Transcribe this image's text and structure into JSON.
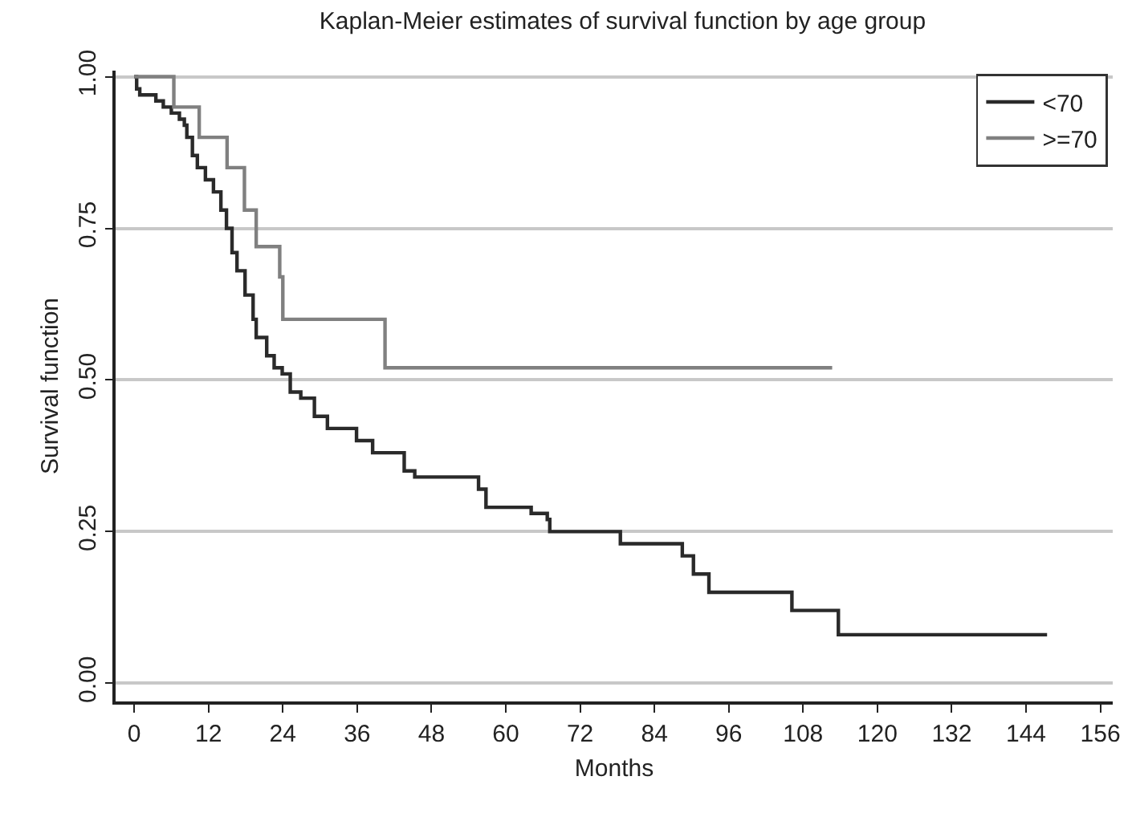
{
  "chart_data": {
    "type": "step",
    "title": "Kaplan-Meier estimates of survival function by age group",
    "xlabel": "Months",
    "ylabel": "Survival function",
    "series": [
      {
        "name": "<70",
        "color": "#2a2a2a",
        "x": [
          0,
          0.4,
          0.9,
          3.5,
          4.7,
          6.0,
          7.3,
          8.1,
          8.5,
          9.4,
          10.2,
          11.5,
          12.8,
          14.0,
          14.9,
          15.8,
          16.6,
          17.9,
          19.2,
          19.7,
          21.4,
          22.6,
          23.9,
          25.2,
          26.9,
          29.1,
          31.2,
          33.8,
          35.9,
          38.5,
          43.6,
          45.3,
          55.6,
          56.8,
          64.1,
          66.7,
          67.1,
          78.5,
          88.5,
          90.3,
          92.8,
          106.2,
          113.7,
          147.4
        ],
        "values": [
          1,
          0.98,
          0.97,
          0.96,
          0.95,
          0.94,
          0.93,
          0.92,
          0.9,
          0.87,
          0.85,
          0.83,
          0.81,
          0.78,
          0.75,
          0.71,
          0.68,
          0.64,
          0.6,
          0.57,
          0.54,
          0.52,
          0.51,
          0.48,
          0.47,
          0.44,
          0.42,
          0.42,
          0.4,
          0.38,
          0.35,
          0.34,
          0.32,
          0.29,
          0.28,
          0.27,
          0.25,
          0.23,
          0.21,
          0.18,
          0.15,
          0.12,
          0.08,
          0.08
        ]
      },
      {
        "name": ">=70",
        "color": "#808080",
        "x": [
          0,
          6.4,
          10.5,
          15.0,
          17.8,
          19.7,
          23.5,
          24.0,
          40.5,
          112.7
        ],
        "values": [
          1,
          0.95,
          0.9,
          0.85,
          0.78,
          0.72,
          0.67,
          0.6,
          0.52,
          0.52
        ]
      }
    ],
    "xlim": [
      -3,
      158
    ],
    "xticks": [
      0,
      12,
      24,
      36,
      48,
      60,
      72,
      84,
      96,
      108,
      120,
      132,
      144,
      156
    ],
    "ylim": [
      -0.03,
      1.01
    ],
    "yticks": [
      {
        "value": 0,
        "label": "0.00"
      },
      {
        "value": 0.25,
        "label": "0.25"
      },
      {
        "value": 0.5,
        "label": "0.50"
      },
      {
        "value": 0.75,
        "label": "0.75"
      },
      {
        "value": 1,
        "label": "1.00"
      }
    ],
    "grid": "y",
    "legend": "top right",
    "marker": "none",
    "line_style": "solid"
  }
}
